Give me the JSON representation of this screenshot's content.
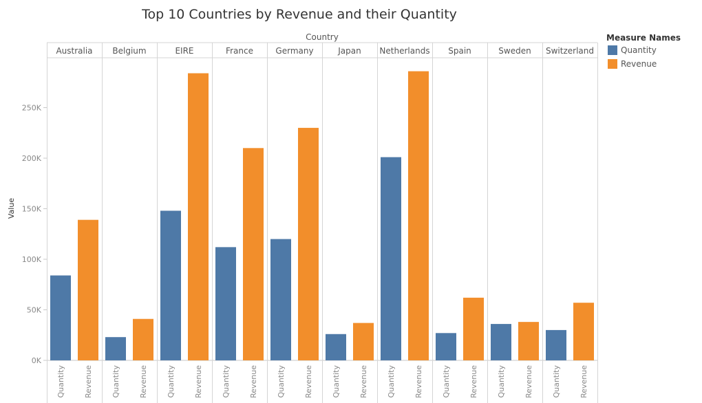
{
  "chart_data": {
    "type": "bar",
    "title": "Top 10 Countries by Revenue and their Quantity",
    "column_header": "Country",
    "ylabel": "Value",
    "xlabel": "",
    "ylim": [
      0,
      300000
    ],
    "yticks": [
      0,
      50000,
      100000,
      150000,
      200000,
      250000
    ],
    "ytick_labels": [
      "0K",
      "50K",
      "100K",
      "150K",
      "200K",
      "250K"
    ],
    "categories": [
      "Australia",
      "Belgium",
      "EIRE",
      "France",
      "Germany",
      "Japan",
      "Netherlands",
      "Spain",
      "Sweden",
      "Switzerland"
    ],
    "measures": [
      "Quantity",
      "Revenue"
    ],
    "series": [
      {
        "name": "Quantity",
        "color": "#4e79a7",
        "values": [
          84000,
          23000,
          148000,
          112000,
          120000,
          26000,
          201000,
          27000,
          36000,
          30000
        ]
      },
      {
        "name": "Revenue",
        "color": "#f28e2b",
        "values": [
          139000,
          41000,
          284000,
          210000,
          230000,
          37000,
          286000,
          62000,
          38000,
          57000
        ]
      }
    ],
    "legend": {
      "title": "Measure Names",
      "position": "top-right"
    },
    "grid": false
  }
}
